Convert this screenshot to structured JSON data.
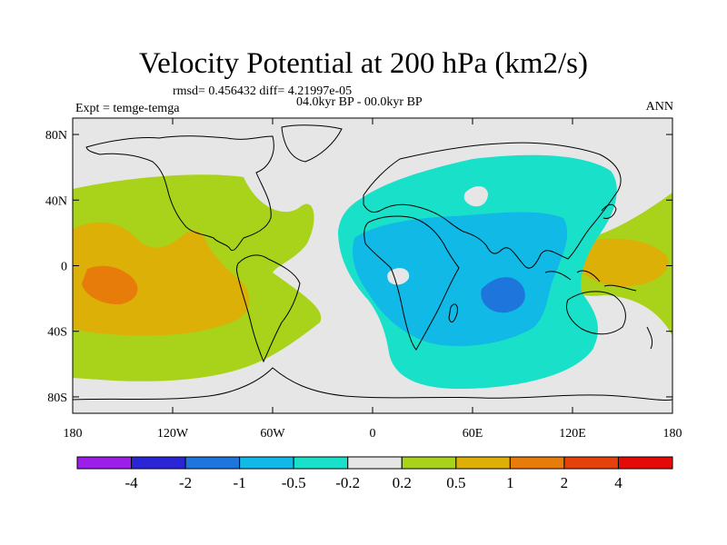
{
  "title": "Velocity Potential at 200 hPa (km2/s)",
  "stats": "rmsd= 0.456432 diff= 4.21997e-05",
  "period": "04.0kyr BP - 00.0kyr BP",
  "experiment": "Expt = temge-temga",
  "season": "ANN",
  "map": {
    "lon_ticks": [
      "180",
      "120W",
      "60W",
      "0",
      "60E",
      "120E",
      "180"
    ],
    "lat_ticks": [
      "80N",
      "40N",
      "0",
      "40S",
      "80S"
    ],
    "background_color": "#e6e6e6"
  },
  "colorbar": {
    "colors": [
      "#9b1fe8",
      "#2a26d6",
      "#1e76dc",
      "#11b9e6",
      "#19e0c9",
      "#e6e6e6",
      "#a8d31a",
      "#ddb007",
      "#e77c0a",
      "#e4420a",
      "#e40a0a"
    ],
    "labels": [
      "-4",
      "-2",
      "-1",
      "-0.5",
      "-0.2",
      "0.2",
      "0.5",
      "1",
      "2",
      "4"
    ]
  },
  "chart_data": {
    "type": "heatmap",
    "title": "Velocity Potential at 200 hPa (km2/s)",
    "variable": "200 hPa velocity potential difference",
    "units": "km2/s",
    "experiment": "temge-temga",
    "period": "04.0kyr BP - 00.0kyr BP",
    "season": "ANN",
    "rmsd": 0.456432,
    "diff": 4.21997e-05,
    "xlim": [
      -180,
      180
    ],
    "ylim": [
      -90,
      90
    ],
    "contour_levels": [
      -4,
      -2,
      -1,
      -0.5,
      -0.2,
      0.2,
      0.5,
      1,
      2,
      4
    ],
    "features": [
      {
        "region": "Central/East Pacific and Americas",
        "sign": "positive",
        "max_level": "1 to 2",
        "center_lon": -150,
        "center_lat": -5
      },
      {
        "region": "Western Pacific / Maritime Continent",
        "sign": "positive",
        "max_level": "0.5 to 1",
        "center_lon": 135,
        "center_lat": 5
      },
      {
        "region": "Africa / Indian Ocean / Asia",
        "sign": "negative",
        "min_level": "-1 to -0.5",
        "center_lon": 75,
        "center_lat": -10
      }
    ]
  }
}
